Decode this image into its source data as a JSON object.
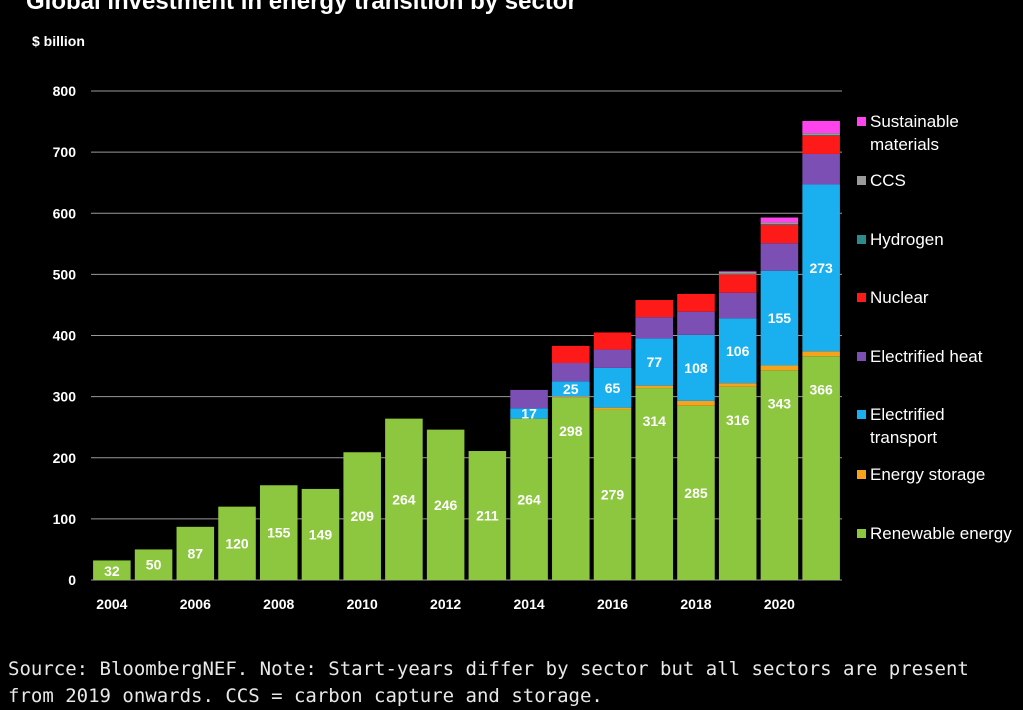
{
  "chart_data": {
    "type": "bar",
    "stacked": true,
    "title": "Global investment in energy transition by sector",
    "ylabel": "$ billion",
    "xlabel": "",
    "ylim": [
      0,
      800
    ],
    "yticks": [
      0,
      100,
      200,
      300,
      400,
      500,
      600,
      700,
      800
    ],
    "grid": true,
    "legend_position": "right",
    "categories": [
      "2004",
      "2005",
      "2006",
      "2007",
      "2008",
      "2009",
      "2010",
      "2011",
      "2012",
      "2013",
      "2014",
      "2015",
      "2016",
      "2017",
      "2018",
      "2019",
      "2020",
      "2021"
    ],
    "xtick_labels": [
      "2004",
      "",
      "2006",
      "",
      "2008",
      "",
      "2010",
      "",
      "2012",
      "",
      "2014",
      "",
      "2016",
      "",
      "2018",
      "",
      "2020",
      ""
    ],
    "series": [
      {
        "name": "Renewable energy",
        "color": "#8dc63f",
        "values": [
          32,
          50,
          87,
          120,
          155,
          149,
          209,
          264,
          246,
          211,
          264,
          298,
          279,
          314,
          285,
          316,
          343,
          366
        ],
        "labels": [
          "32",
          "50",
          "87",
          "120",
          "155",
          "149",
          "209",
          "264",
          "246",
          "211",
          "264",
          "298",
          "279",
          "314",
          "285",
          "316",
          "343",
          "366"
        ]
      },
      {
        "name": "Energy storage",
        "color": "#f7a21b",
        "values": [
          0,
          0,
          0,
          0,
          0,
          0,
          0,
          0,
          0,
          0,
          0,
          2,
          3,
          4,
          8,
          6,
          8,
          8
        ],
        "labels": []
      },
      {
        "name": "Electrified transport",
        "color": "#1ab0ef",
        "values": [
          0,
          0,
          0,
          0,
          0,
          0,
          0,
          0,
          0,
          0,
          17,
          25,
          65,
          77,
          108,
          106,
          155,
          273
        ],
        "labels": [
          "",
          "",
          "",
          "",
          "",
          "",
          "",
          "",
          "",
          "",
          "17",
          "25",
          "65",
          "77",
          "108",
          "106",
          "155",
          "273"
        ]
      },
      {
        "name": "Electrified heat",
        "color": "#7b4fb3",
        "values": [
          0,
          0,
          0,
          0,
          0,
          0,
          0,
          0,
          0,
          0,
          30,
          30,
          30,
          35,
          38,
          42,
          45,
          50
        ],
        "labels": []
      },
      {
        "name": "Nuclear",
        "color": "#ff1a1a",
        "values": [
          0,
          0,
          0,
          0,
          0,
          0,
          0,
          0,
          0,
          0,
          0,
          28,
          28,
          28,
          29,
          30,
          30,
          30
        ],
        "labels": []
      },
      {
        "name": "Hydrogen",
        "color": "#2e8b8b",
        "values": [
          0,
          0,
          0,
          0,
          0,
          0,
          0,
          0,
          0,
          0,
          0,
          0,
          0,
          0,
          0,
          1,
          1,
          1
        ],
        "labels": []
      },
      {
        "name": "CCS",
        "color": "#9a9a9a",
        "values": [
          0,
          0,
          0,
          0,
          0,
          0,
          0,
          0,
          0,
          0,
          0,
          0,
          0,
          0,
          0,
          3,
          3,
          3
        ],
        "labels": []
      },
      {
        "name": "Sustainable materials",
        "color": "#ff44ee",
        "values": [
          0,
          0,
          0,
          0,
          0,
          0,
          0,
          0,
          0,
          0,
          0,
          0,
          0,
          0,
          0,
          1,
          8,
          20
        ],
        "labels": []
      }
    ],
    "legend": [
      {
        "label": "Sustainable materials",
        "color": "#ff44ee"
      },
      {
        "label": "CCS",
        "color": "#9a9a9a"
      },
      {
        "label": "Hydrogen",
        "color": "#2e8b8b"
      },
      {
        "label": "Nuclear",
        "color": "#ff1a1a"
      },
      {
        "label": "Electrified heat",
        "color": "#7b4fb3"
      },
      {
        "label": "Electrified transport",
        "color": "#1ab0ef"
      },
      {
        "label": "Energy storage",
        "color": "#f7a21b"
      },
      {
        "label": "Renewable energy",
        "color": "#8dc63f"
      }
    ]
  },
  "source_note": "Source: BloombergNEF. Note: Start-years differ by sector but all sectors are present from 2019 onwards. CCS = carbon capture and storage."
}
